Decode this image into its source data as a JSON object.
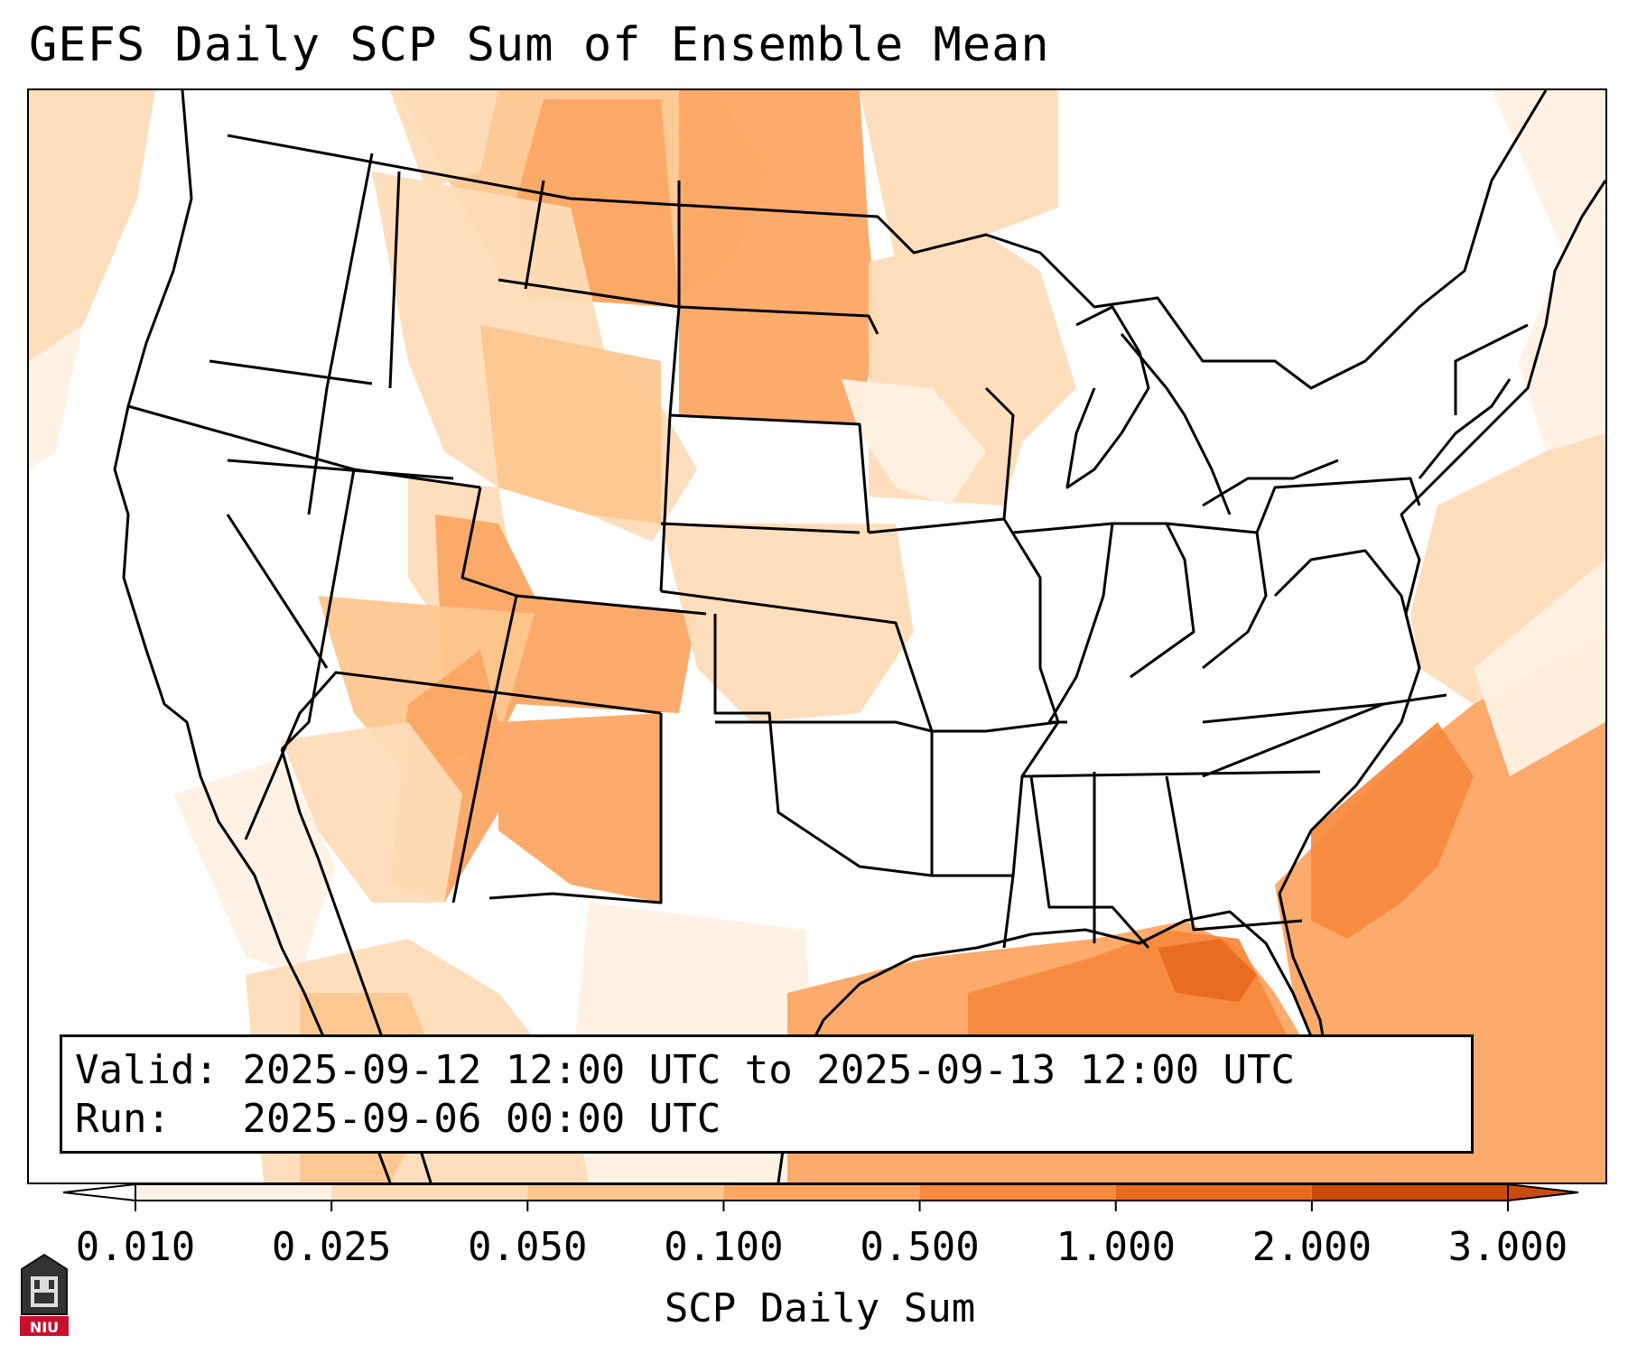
{
  "title": "GEFS Daily SCP Sum of Ensemble Mean",
  "info": {
    "valid_label": "Valid:",
    "valid_value": "2025-09-12 12:00 UTC to 2025-09-13 12:00 UTC",
    "run_label": "Run:",
    "run_value": "2025-09-06 00:00 UTC"
  },
  "colorbar": {
    "label": "SCP Daily Sum",
    "ticks": [
      "0.010",
      "0.025",
      "0.050",
      "0.100",
      "0.500",
      "1.000",
      "2.000",
      "3.000"
    ],
    "colors": [
      "#fff1e3",
      "#fedcb8",
      "#fdc68e",
      "#fca764",
      "#f78a3e",
      "#e86a1f",
      "#cc4a0a"
    ],
    "extend": "both"
  },
  "logo": {
    "text": "NIU",
    "color": "#c8102e"
  },
  "colors": {
    "frame": "#000000",
    "state_lines": "#000000"
  }
}
